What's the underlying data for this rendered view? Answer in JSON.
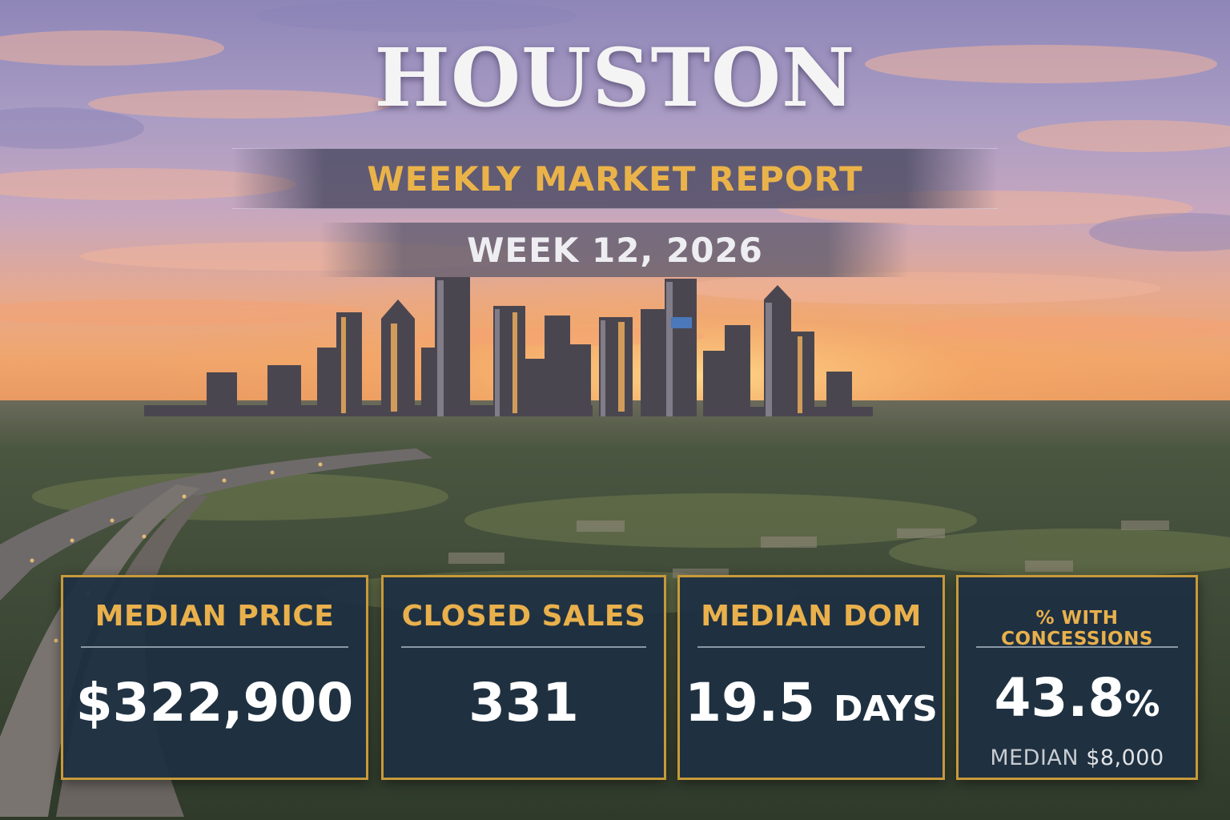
{
  "title": "HOUSTON",
  "subtitle": "WEEKLY MARKET REPORT",
  "week": "WEEK 12, 2026",
  "colors": {
    "accent": "#c89a3a",
    "gold_text": "#e9b04c",
    "card_bg": "#1e3042"
  },
  "cards": [
    {
      "label": "MEDIAN PRICE",
      "value": "$322,900"
    },
    {
      "label": "CLOSED SALES",
      "value": "331"
    },
    {
      "label": "MEDIAN DOM",
      "value": "19.5",
      "unit": "DAYS"
    },
    {
      "label": "% WITH CONCESSIONS",
      "value": "43.8",
      "unit": "%",
      "sub_label": "MEDIAN",
      "sub_value": "$8,000"
    }
  ]
}
